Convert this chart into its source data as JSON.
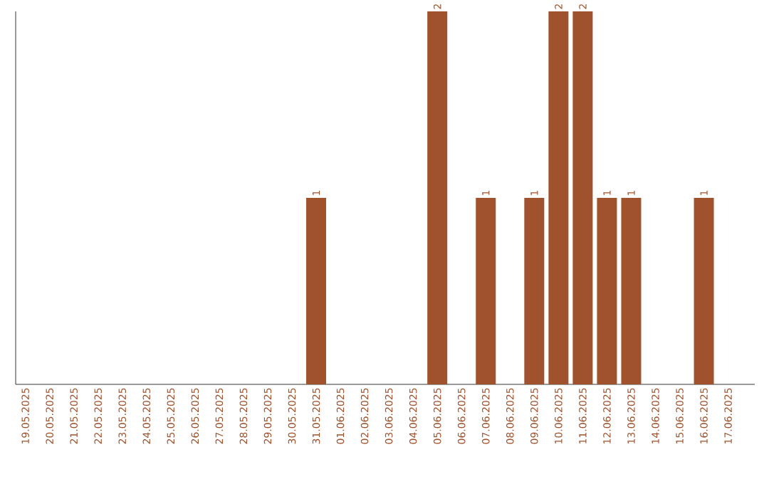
{
  "chart_data": {
    "type": "bar",
    "categories": [
      "19.05.2025",
      "20.05.2025",
      "21.05.2025",
      "22.05.2025",
      "23.05.2025",
      "24.05.2025",
      "25.05.2025",
      "26.05.2025",
      "27.05.2025",
      "28.05.2025",
      "29.05.2025",
      "30.05.2025",
      "31.05.2025",
      "01.06.2025",
      "02.06.2025",
      "03.06.2025",
      "04.06.2025",
      "05.06.2025",
      "06.06.2025",
      "07.06.2025",
      "08.06.2025",
      "09.06.2025",
      "10.06.2025",
      "11.06.2025",
      "12.06.2025",
      "13.06.2025",
      "14.06.2025",
      "15.06.2025",
      "16.06.2025",
      "17.06.2025"
    ],
    "values": [
      null,
      null,
      null,
      null,
      null,
      null,
      null,
      null,
      null,
      null,
      null,
      null,
      1,
      null,
      null,
      null,
      null,
      2,
      null,
      1,
      null,
      1,
      2,
      2,
      1,
      1,
      null,
      null,
      1,
      null
    ],
    "value_labels": [
      null,
      null,
      null,
      null,
      null,
      null,
      null,
      null,
      null,
      null,
      null,
      null,
      "1",
      null,
      null,
      null,
      null,
      "2",
      null,
      "1",
      null,
      "1",
      "2",
      "2",
      "1",
      "1",
      null,
      null,
      "1",
      null
    ],
    "color": "#a0522d"
  }
}
